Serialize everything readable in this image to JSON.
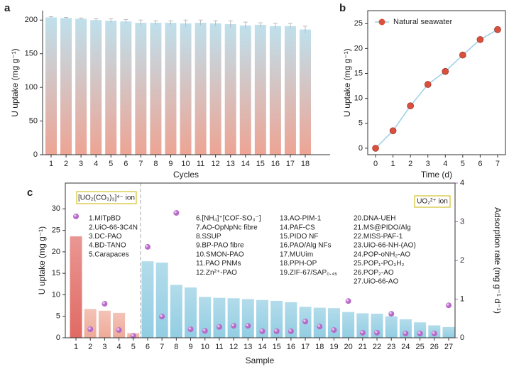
{
  "chart_data": [
    {
      "type": "bar",
      "panel": "a",
      "ylabel": "U uptake (mg g⁻¹)",
      "xlabel": "Cycles",
      "categories": [
        "1",
        "2",
        "3",
        "4",
        "5",
        "6",
        "7",
        "8",
        "9",
        "10",
        "11",
        "12",
        "13",
        "14",
        "15",
        "16",
        "17",
        "18"
      ],
      "values": [
        204,
        203,
        202,
        200,
        199,
        198,
        196,
        196,
        196,
        195,
        196,
        195,
        194,
        192,
        193,
        191,
        191,
        186
      ],
      "errors": [
        1,
        1,
        1,
        2,
        3,
        3,
        4,
        3,
        3,
        5,
        4,
        4,
        5,
        5,
        3,
        4,
        4,
        5
      ],
      "gradient": [
        "#bfe0ec",
        "#eda494"
      ],
      "ylim": [
        0,
        214
      ],
      "yticks": [
        0,
        50,
        100,
        150,
        200
      ]
    },
    {
      "type": "line",
      "panel": "b",
      "ylabel": "U uptake (mg g⁻¹)",
      "xlabel": "Time (d)",
      "x": [
        0,
        1,
        2,
        3,
        4,
        5,
        6,
        7
      ],
      "series": [
        {
          "name": "Natural seawater",
          "color": "#9ccfe6",
          "marker_color": "#d9503c",
          "values": [
            0,
            3.5,
            8.5,
            12.8,
            15.4,
            18.7,
            21.8,
            23.8
          ]
        }
      ],
      "xlim": [
        -0.45,
        7.45
      ],
      "xticks": [
        0,
        1,
        2,
        3,
        4,
        5,
        6,
        7
      ],
      "ylim": [
        -1.3,
        27.6
      ],
      "yticks": [
        0,
        5,
        10,
        15,
        20,
        25
      ],
      "legend": "top-left"
    },
    {
      "type": "bar-scatter",
      "panel": "c",
      "ylabel": "U uptake (mg g⁻¹)",
      "y2label": "Adsorption rate (mg g⁻¹ d⁻¹)",
      "xlabel": "Sample",
      "categories": [
        "1",
        "2",
        "3",
        "4",
        "5",
        "6",
        "7",
        "8",
        "9",
        "10",
        "11",
        "12",
        "13",
        "14",
        "15",
        "16",
        "17",
        "18",
        "19",
        "20",
        "21",
        "22",
        "23",
        "24",
        "25",
        "26",
        "27"
      ],
      "values": [
        23.6,
        6.7,
        6.3,
        5.8,
        1.1,
        17.8,
        17.5,
        12.3,
        11.7,
        9.5,
        9.3,
        9.2,
        9.0,
        8.8,
        8.6,
        8.3,
        7.2,
        7.0,
        6.9,
        6.0,
        5.7,
        5.6,
        5.0,
        4.3,
        3.6,
        2.9,
        2.5
      ],
      "colors": [
        "#e06a64",
        "#eeaa98",
        "#eeaa98",
        "#eeaa98",
        "#eeaa98",
        "#92cde2",
        "#92cde2",
        "#92cde2",
        "#92cde2",
        "#92cde2",
        "#92cde2",
        "#92cde2",
        "#92cde2",
        "#92cde2",
        "#92cde2",
        "#92cde2",
        "#92cde2",
        "#92cde2",
        "#92cde2",
        "#92cde2",
        "#92cde2",
        "#92cde2",
        "#92cde2",
        "#92cde2",
        "#92cde2",
        "#92cde2",
        "#92cde2"
      ],
      "values2": [
        3.14,
        0.22,
        0.88,
        0.2,
        0.05,
        2.35,
        0.55,
        3.23,
        0.22,
        0.18,
        0.28,
        0.31,
        0.31,
        0.17,
        0.17,
        0.17,
        0.42,
        0.29,
        0.2,
        0.95,
        0.13,
        0.13,
        0.62,
        0.11,
        0.11,
        0.11,
        0.84
      ],
      "color2": "#b768c9",
      "ylim": [
        0,
        36
      ],
      "yticks": [
        0,
        5,
        10,
        15,
        20,
        25,
        30
      ],
      "y2lim": [
        0,
        4
      ],
      "y2ticks": [
        0,
        1,
        2,
        3,
        4
      ],
      "annotations": [
        "[UO₂(CO₃)₃]⁴⁻ ion",
        "UO₂²⁺ ion"
      ],
      "sample_names": [
        "1.MITpBD",
        "2.UiO-66-3C4N",
        "3.DC-PAO",
        "4.BD-TANO",
        "5.Carapaces",
        "6.[NH₄]⁺[COF-SO₃⁻]",
        "7.AO-OpNpNc fibre",
        "8.SSUP",
        "9.BP-PAO fibre",
        "10.SMON-PAO",
        "11.PAO PNMs",
        "12.Zn²⁺-PAO",
        "13.AO-PIM-1",
        "14.PAF-CS",
        "15.PIDO NF",
        "16.PAO/Alg NFs",
        "17.MUUim",
        "18.PPH-OP",
        "19.ZIF-67/SAP₀.₄₅",
        "20.DNA-UEH",
        "21.MS@PIDO/Alg",
        "22.MISS-PAF-1",
        "23.UiO-66-NH-(AO)",
        "24.POP-oNH₂-AO",
        "25.POP₁-PO₃H₂",
        "26.POP₂-AO",
        "27.UiO-66-AO"
      ]
    }
  ]
}
